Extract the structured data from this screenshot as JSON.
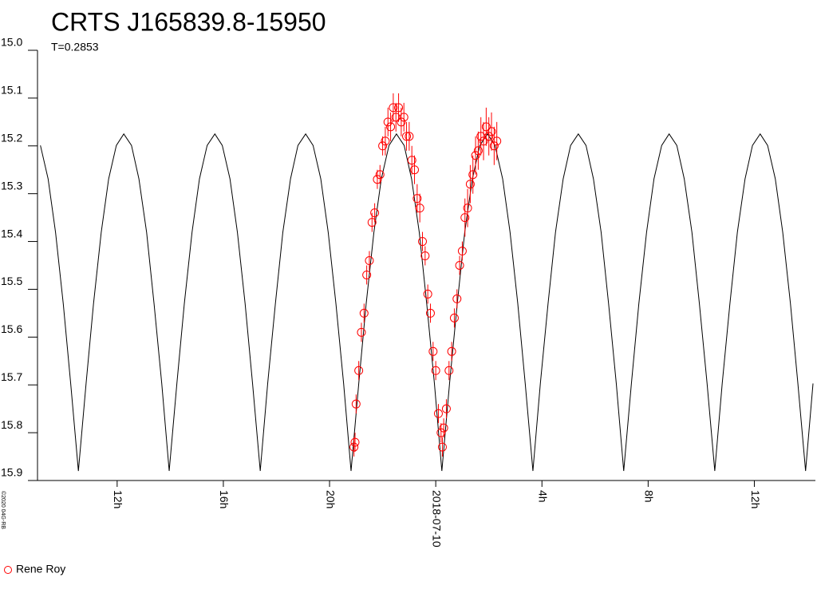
{
  "chart_data": {
    "type": "scatter",
    "title": "CRTS J165839.8-15950",
    "subtitle": "T=0.2853",
    "credit": "©2020 04G-RB",
    "ylim": [
      15.0,
      15.9
    ],
    "y_inverted": true,
    "yticks": [
      {
        "value": 15.0,
        "label": "15.0"
      },
      15.1,
      15.2,
      15.3,
      15.4,
      15.5,
      15.6,
      15.7,
      15.8,
      15.9
    ],
    "xlim": [
      -15,
      14.3
    ],
    "xticks": [
      {
        "value": -12,
        "label": "12h"
      },
      {
        "value": -8,
        "label": "16h"
      },
      {
        "value": -4,
        "label": "20h"
      },
      {
        "value": 0,
        "label": "2018-07-10"
      },
      {
        "value": 4,
        "label": "4h"
      },
      {
        "value": 8,
        "label": "8h"
      },
      {
        "value": 12,
        "label": "12h"
      }
    ],
    "grid": false,
    "legend": "lower left",
    "series": [
      {
        "type": "line",
        "color": "#000000",
        "x": [
          -14.89,
          -14.6,
          -14.32,
          -14.03,
          -13.75,
          -13.46,
          -13.17,
          -12.89,
          -12.6,
          -12.32,
          -12.03,
          -11.75,
          -11.46,
          -11.18,
          -10.89,
          -10.61,
          -10.32,
          -10.04,
          -9.75,
          -9.47,
          -9.18,
          -8.9,
          -8.61,
          -8.32,
          -8.04,
          -7.75,
          -7.47,
          -7.18,
          -6.9,
          -6.61,
          -6.33,
          -6.04,
          -5.76,
          -5.47,
          -5.19,
          -4.9,
          -4.62,
          -4.33,
          -4.05,
          -3.76,
          -3.47,
          -3.19,
          -2.9,
          -2.62,
          -2.33,
          -2.05,
          -1.76,
          -1.48,
          -1.19,
          -0.91,
          -0.62,
          -0.34,
          -0.05,
          0.23,
          0.52,
          0.81,
          1.09,
          1.38,
          1.66,
          1.95,
          2.23,
          2.52,
          2.8,
          3.09,
          3.37,
          3.66,
          3.94,
          4.23,
          4.51,
          4.8,
          5.08,
          5.37,
          5.66,
          5.94,
          6.23,
          6.51,
          6.8,
          7.08,
          7.37,
          7.65,
          7.94,
          8.22,
          8.51,
          8.79,
          9.08,
          9.36,
          9.65,
          9.93,
          10.22,
          10.51,
          10.79,
          11.08,
          11.36,
          11.65,
          11.93,
          12.22,
          12.5,
          12.79,
          13.07,
          13.36,
          13.64,
          13.93,
          14.21
        ],
        "values": [
          15.199,
          15.269,
          15.381,
          15.53,
          15.697,
          15.88,
          15.697,
          15.53,
          15.381,
          15.269,
          15.199,
          15.175,
          15.199,
          15.269,
          15.381,
          15.53,
          15.697,
          15.88,
          15.697,
          15.53,
          15.381,
          15.269,
          15.199,
          15.175,
          15.199,
          15.269,
          15.381,
          15.53,
          15.697,
          15.88,
          15.697,
          15.53,
          15.381,
          15.269,
          15.199,
          15.175,
          15.199,
          15.269,
          15.381,
          15.53,
          15.697,
          15.88,
          15.697,
          15.53,
          15.381,
          15.269,
          15.199,
          15.175,
          15.199,
          15.269,
          15.381,
          15.53,
          15.697,
          15.88,
          15.697,
          15.53,
          15.381,
          15.269,
          15.199,
          15.175,
          15.199,
          15.269,
          15.381,
          15.53,
          15.697,
          15.88,
          15.697,
          15.53,
          15.381,
          15.269,
          15.199,
          15.175,
          15.199,
          15.269,
          15.381,
          15.53,
          15.697,
          15.88,
          15.697,
          15.53,
          15.381,
          15.269,
          15.199,
          15.175,
          15.199,
          15.269,
          15.381,
          15.53,
          15.697,
          15.88,
          15.697,
          15.53,
          15.381,
          15.269,
          15.199,
          15.175,
          15.199,
          15.269,
          15.381,
          15.53,
          15.697,
          15.88,
          15.697
        ]
      },
      {
        "type": "scatter",
        "name": "Rene Roy",
        "color": "#ff0000",
        "x": [
          -3.08,
          -3.04,
          -3.0,
          -2.9,
          -2.8,
          -2.7,
          -2.6,
          -2.5,
          -2.4,
          -2.3,
          -2.2,
          -2.1,
          -2.0,
          -1.9,
          -1.8,
          -1.7,
          -1.6,
          -1.5,
          -1.4,
          -1.3,
          -1.2,
          -1.1,
          -1.0,
          -0.9,
          -0.8,
          -0.7,
          -0.6,
          -0.5,
          -0.4,
          -0.3,
          -0.2,
          -0.1,
          0.0,
          0.1,
          0.2,
          0.25,
          0.3,
          0.4,
          0.5,
          0.6,
          0.7,
          0.8,
          0.9,
          1.0,
          1.1,
          1.2,
          1.3,
          1.4,
          1.5,
          1.6,
          1.7,
          1.8,
          1.9,
          2.0,
          2.1,
          2.2,
          2.3
        ],
        "values": [
          15.83,
          15.82,
          15.74,
          15.67,
          15.59,
          15.55,
          15.47,
          15.44,
          15.36,
          15.34,
          15.27,
          15.26,
          15.2,
          15.19,
          15.15,
          15.16,
          15.12,
          15.14,
          15.12,
          15.15,
          15.14,
          15.18,
          15.18,
          15.23,
          15.25,
          15.31,
          15.33,
          15.4,
          15.43,
          15.51,
          15.55,
          15.63,
          15.67,
          15.76,
          15.8,
          15.83,
          15.79,
          15.75,
          15.67,
          15.63,
          15.56,
          15.52,
          15.45,
          15.42,
          15.35,
          15.33,
          15.28,
          15.26,
          15.22,
          15.21,
          15.18,
          15.19,
          15.16,
          15.18,
          15.17,
          15.2,
          15.19
        ],
        "errors": [
          0.02,
          0.02,
          0.02,
          0.02,
          0.02,
          0.02,
          0.02,
          0.02,
          0.02,
          0.02,
          0.02,
          0.02,
          0.02,
          0.03,
          0.03,
          0.03,
          0.03,
          0.03,
          0.03,
          0.03,
          0.03,
          0.03,
          0.03,
          0.03,
          0.03,
          0.03,
          0.03,
          0.02,
          0.02,
          0.02,
          0.02,
          0.02,
          0.02,
          0.02,
          0.02,
          0.02,
          0.02,
          0.02,
          0.02,
          0.02,
          0.02,
          0.02,
          0.02,
          0.02,
          0.04,
          0.04,
          0.04,
          0.04,
          0.04,
          0.04,
          0.04,
          0.04,
          0.04,
          0.04,
          0.04,
          0.04,
          0.04
        ]
      }
    ]
  }
}
